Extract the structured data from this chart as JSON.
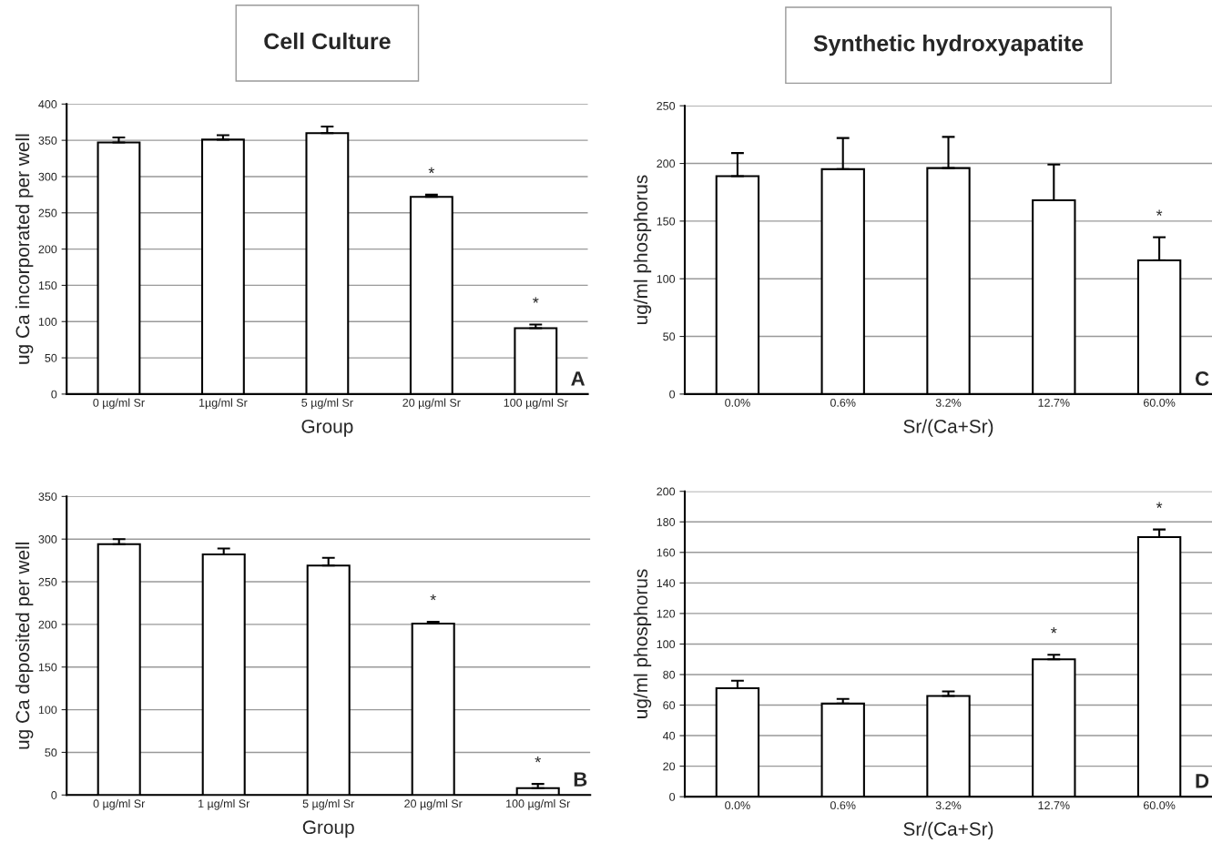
{
  "chart_data": [
    {
      "type": "bar",
      "title": "Cell Culture",
      "xlabel": "Group",
      "ylabel": "ug Ca incorporated per well",
      "categories": [
        "0 µg/ml Sr",
        "1µg/ml Sr",
        "5 µg/ml Sr",
        "20 µg/ml Sr",
        "100 µg/ml Sr"
      ],
      "color": "#ffffff",
      "values": [
        347,
        351,
        360,
        272,
        91
      ],
      "errors": [
        [
          347,
          354
        ],
        [
          351,
          357
        ],
        [
          360,
          369
        ],
        [
          272,
          275
        ],
        [
          91,
          96
        ]
      ],
      "ylim": [
        0,
        400
      ],
      "yticks": [
        0,
        50,
        100,
        150,
        200,
        250,
        300,
        350,
        400
      ],
      "grid": "y",
      "annotations": [
        "A",
        {
          "text": "*",
          "x": "20 µg/ml Sr",
          "y": 275
        },
        {
          "text": "*",
          "x": "100 µg/ml Sr",
          "y": 96
        }
      ]
    },
    {
      "type": "bar",
      "title": "Synthetic hydroxyapatite",
      "xlabel": "Sr/(Ca+Sr)",
      "ylabel": "ug/ml phosphorus",
      "categories": [
        "0.0%",
        "0.6%",
        "3.2%",
        "12.7%",
        "60.0%"
      ],
      "color": "#ffffff",
      "values": [
        189,
        195,
        196,
        168,
        116
      ],
      "errors": [
        [
          189,
          209
        ],
        [
          195,
          222
        ],
        [
          196,
          223
        ],
        [
          168,
          199
        ],
        [
          116,
          136
        ]
      ],
      "ylim": [
        0,
        250
      ],
      "yticks": [
        0,
        50,
        100,
        150,
        200,
        250
      ],
      "grid": "y",
      "annotations": [
        "C",
        {
          "text": "*",
          "x": "60.0%",
          "y": 136
        }
      ]
    },
    {
      "type": "bar",
      "xlabel": "Group",
      "ylabel": "ug Ca deposited per well",
      "categories": [
        "0 µg/ml Sr",
        "1 µg/ml Sr",
        "5 µg/ml Sr",
        "20 µg/ml Sr",
        "100 µg/ml Sr"
      ],
      "color": "#ffffff",
      "values": [
        294,
        282,
        269,
        201,
        8
      ],
      "errors": [
        [
          294,
          300
        ],
        [
          282,
          289
        ],
        [
          269,
          278
        ],
        [
          201,
          203
        ],
        [
          8,
          13
        ]
      ],
      "ylim": [
        0,
        350
      ],
      "yticks": [
        0,
        50,
        100,
        150,
        200,
        250,
        300,
        350
      ],
      "grid": "y",
      "annotations": [
        "B",
        {
          "text": "*",
          "x": "20 µg/ml Sr",
          "y": 203
        },
        {
          "text": "*",
          "x": "100 µg/ml Sr",
          "y": 13
        }
      ]
    },
    {
      "type": "bar",
      "xlabel": "Sr/(Ca+Sr)",
      "ylabel": "ug/ml phosphorus",
      "categories": [
        "0.0%",
        "0.6%",
        "3.2%",
        "12.7%",
        "60.0%"
      ],
      "color": "#ffffff",
      "values": [
        71,
        61,
        66,
        90,
        170
      ],
      "errors": [
        [
          71,
          76
        ],
        [
          61,
          64
        ],
        [
          66,
          69
        ],
        [
          90,
          93
        ],
        [
          170,
          175
        ]
      ],
      "ylim": [
        0,
        200
      ],
      "yticks": [
        0,
        20,
        40,
        60,
        80,
        100,
        120,
        140,
        160,
        180,
        200
      ],
      "grid": "y",
      "annotations": [
        "D",
        {
          "text": "*",
          "x": "12.7%",
          "y": 93
        },
        {
          "text": "*",
          "x": "60.0%",
          "y": 175
        }
      ]
    }
  ]
}
